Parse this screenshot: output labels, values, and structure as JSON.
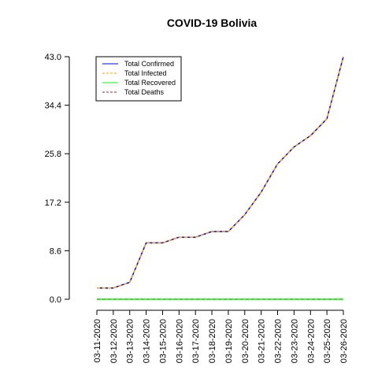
{
  "chart_data": {
    "type": "line",
    "title": "COVID-19 Bolivia",
    "xlabel": "",
    "ylabel": "",
    "x": [
      "03-11-2020",
      "03-12-2020",
      "03-13-2020",
      "03-14-2020",
      "03-15-2020",
      "03-16-2020",
      "03-17-2020",
      "03-18-2020",
      "03-19-2020",
      "03-20-2020",
      "03-21-2020",
      "03-22-2020",
      "03-23-2020",
      "03-24-2020",
      "03-25-2020",
      "03-26-2020"
    ],
    "yticks": [
      "0.0",
      "8.6",
      "17.2",
      "25.8",
      "34.4",
      "43.0"
    ],
    "ylim": [
      0,
      43
    ],
    "grid": false,
    "legend_position": "top-left",
    "series": [
      {
        "name": "Total Confirmed",
        "color": "#0000ff",
        "dash": "solid",
        "values": [
          2,
          2,
          3,
          10,
          10,
          11,
          11,
          12,
          12,
          15,
          19,
          24,
          27,
          29,
          32,
          43
        ]
      },
      {
        "name": "Total Infected",
        "color": "#ffa500",
        "dash": "dashed",
        "values": [
          2,
          2,
          3,
          10,
          10,
          11,
          11,
          12,
          12,
          15,
          19,
          24,
          27,
          29,
          32,
          43
        ]
      },
      {
        "name": "Total Recovered",
        "color": "#00ff00",
        "dash": "solid",
        "values": [
          0,
          0,
          0,
          0,
          0,
          0,
          0,
          0,
          0,
          0,
          0,
          0,
          0,
          0,
          0,
          0
        ]
      },
      {
        "name": "Total Deaths",
        "color": "#a52a2a",
        "dash": "dashed",
        "values": [
          0,
          0,
          0,
          0,
          0,
          0,
          0,
          0,
          0,
          0,
          0,
          0,
          0,
          0,
          0,
          0
        ]
      }
    ]
  }
}
